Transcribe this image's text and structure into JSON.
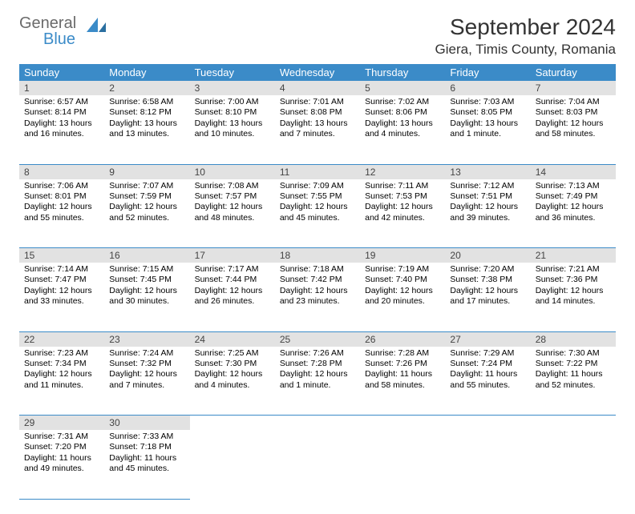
{
  "logo": {
    "part1": "General",
    "part2": "Blue"
  },
  "title": "September 2024",
  "location": "Giera, Timis County, Romania",
  "colors": {
    "header_bg": "#3b8bc8",
    "header_fg": "#ffffff",
    "daynum_bg": "#e2e2e2",
    "row_divider": "#3b8bc8",
    "logo_gray": "#6a6a6a",
    "logo_blue": "#3b8bc8"
  },
  "weekdays": [
    "Sunday",
    "Monday",
    "Tuesday",
    "Wednesday",
    "Thursday",
    "Friday",
    "Saturday"
  ],
  "weeks": [
    [
      {
        "n": "1",
        "sr": "Sunrise: 6:57 AM",
        "ss": "Sunset: 8:14 PM",
        "dl": "Daylight: 13 hours and 16 minutes."
      },
      {
        "n": "2",
        "sr": "Sunrise: 6:58 AM",
        "ss": "Sunset: 8:12 PM",
        "dl": "Daylight: 13 hours and 13 minutes."
      },
      {
        "n": "3",
        "sr": "Sunrise: 7:00 AM",
        "ss": "Sunset: 8:10 PM",
        "dl": "Daylight: 13 hours and 10 minutes."
      },
      {
        "n": "4",
        "sr": "Sunrise: 7:01 AM",
        "ss": "Sunset: 8:08 PM",
        "dl": "Daylight: 13 hours and 7 minutes."
      },
      {
        "n": "5",
        "sr": "Sunrise: 7:02 AM",
        "ss": "Sunset: 8:06 PM",
        "dl": "Daylight: 13 hours and 4 minutes."
      },
      {
        "n": "6",
        "sr": "Sunrise: 7:03 AM",
        "ss": "Sunset: 8:05 PM",
        "dl": "Daylight: 13 hours and 1 minute."
      },
      {
        "n": "7",
        "sr": "Sunrise: 7:04 AM",
        "ss": "Sunset: 8:03 PM",
        "dl": "Daylight: 12 hours and 58 minutes."
      }
    ],
    [
      {
        "n": "8",
        "sr": "Sunrise: 7:06 AM",
        "ss": "Sunset: 8:01 PM",
        "dl": "Daylight: 12 hours and 55 minutes."
      },
      {
        "n": "9",
        "sr": "Sunrise: 7:07 AM",
        "ss": "Sunset: 7:59 PM",
        "dl": "Daylight: 12 hours and 52 minutes."
      },
      {
        "n": "10",
        "sr": "Sunrise: 7:08 AM",
        "ss": "Sunset: 7:57 PM",
        "dl": "Daylight: 12 hours and 48 minutes."
      },
      {
        "n": "11",
        "sr": "Sunrise: 7:09 AM",
        "ss": "Sunset: 7:55 PM",
        "dl": "Daylight: 12 hours and 45 minutes."
      },
      {
        "n": "12",
        "sr": "Sunrise: 7:11 AM",
        "ss": "Sunset: 7:53 PM",
        "dl": "Daylight: 12 hours and 42 minutes."
      },
      {
        "n": "13",
        "sr": "Sunrise: 7:12 AM",
        "ss": "Sunset: 7:51 PM",
        "dl": "Daylight: 12 hours and 39 minutes."
      },
      {
        "n": "14",
        "sr": "Sunrise: 7:13 AM",
        "ss": "Sunset: 7:49 PM",
        "dl": "Daylight: 12 hours and 36 minutes."
      }
    ],
    [
      {
        "n": "15",
        "sr": "Sunrise: 7:14 AM",
        "ss": "Sunset: 7:47 PM",
        "dl": "Daylight: 12 hours and 33 minutes."
      },
      {
        "n": "16",
        "sr": "Sunrise: 7:15 AM",
        "ss": "Sunset: 7:45 PM",
        "dl": "Daylight: 12 hours and 30 minutes."
      },
      {
        "n": "17",
        "sr": "Sunrise: 7:17 AM",
        "ss": "Sunset: 7:44 PM",
        "dl": "Daylight: 12 hours and 26 minutes."
      },
      {
        "n": "18",
        "sr": "Sunrise: 7:18 AM",
        "ss": "Sunset: 7:42 PM",
        "dl": "Daylight: 12 hours and 23 minutes."
      },
      {
        "n": "19",
        "sr": "Sunrise: 7:19 AM",
        "ss": "Sunset: 7:40 PM",
        "dl": "Daylight: 12 hours and 20 minutes."
      },
      {
        "n": "20",
        "sr": "Sunrise: 7:20 AM",
        "ss": "Sunset: 7:38 PM",
        "dl": "Daylight: 12 hours and 17 minutes."
      },
      {
        "n": "21",
        "sr": "Sunrise: 7:21 AM",
        "ss": "Sunset: 7:36 PM",
        "dl": "Daylight: 12 hours and 14 minutes."
      }
    ],
    [
      {
        "n": "22",
        "sr": "Sunrise: 7:23 AM",
        "ss": "Sunset: 7:34 PM",
        "dl": "Daylight: 12 hours and 11 minutes."
      },
      {
        "n": "23",
        "sr": "Sunrise: 7:24 AM",
        "ss": "Sunset: 7:32 PM",
        "dl": "Daylight: 12 hours and 7 minutes."
      },
      {
        "n": "24",
        "sr": "Sunrise: 7:25 AM",
        "ss": "Sunset: 7:30 PM",
        "dl": "Daylight: 12 hours and 4 minutes."
      },
      {
        "n": "25",
        "sr": "Sunrise: 7:26 AM",
        "ss": "Sunset: 7:28 PM",
        "dl": "Daylight: 12 hours and 1 minute."
      },
      {
        "n": "26",
        "sr": "Sunrise: 7:28 AM",
        "ss": "Sunset: 7:26 PM",
        "dl": "Daylight: 11 hours and 58 minutes."
      },
      {
        "n": "27",
        "sr": "Sunrise: 7:29 AM",
        "ss": "Sunset: 7:24 PM",
        "dl": "Daylight: 11 hours and 55 minutes."
      },
      {
        "n": "28",
        "sr": "Sunrise: 7:30 AM",
        "ss": "Sunset: 7:22 PM",
        "dl": "Daylight: 11 hours and 52 minutes."
      }
    ],
    [
      {
        "n": "29",
        "sr": "Sunrise: 7:31 AM",
        "ss": "Sunset: 7:20 PM",
        "dl": "Daylight: 11 hours and 49 minutes."
      },
      {
        "n": "30",
        "sr": "Sunrise: 7:33 AM",
        "ss": "Sunset: 7:18 PM",
        "dl": "Daylight: 11 hours and 45 minutes."
      },
      null,
      null,
      null,
      null,
      null
    ]
  ]
}
